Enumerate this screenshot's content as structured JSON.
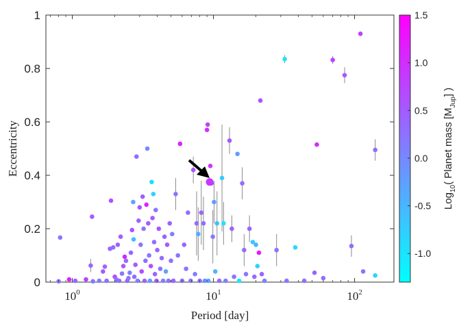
{
  "chart_data": {
    "type": "scatter",
    "xlabel": "Period [day]",
    "ylabel": "Eccentricity",
    "xscale": "log",
    "xlim": [
      0.65,
      190
    ],
    "ylim": [
      0,
      1
    ],
    "xticks": [
      {
        "value": 1,
        "base": "10",
        "exp": "0"
      },
      {
        "value": 10,
        "base": "10",
        "exp": "1"
      },
      {
        "value": 100,
        "base": "10",
        "exp": "2"
      }
    ],
    "yticks": [
      {
        "value": 0,
        "label": "0"
      },
      {
        "value": 0.2,
        "label": "0.2"
      },
      {
        "value": 0.4,
        "label": "0.4"
      },
      {
        "value": 0.6,
        "label": "0.6"
      },
      {
        "value": 0.8,
        "label": "0.8"
      },
      {
        "value": 1,
        "label": "1"
      }
    ],
    "grid": false,
    "colorbar": {
      "label_prefix": "Log",
      "label_sub": "10",
      "label_mid": "( Planet mass [M",
      "label_msub": "Jup",
      "label_suffix": "] )",
      "range": [
        -1.3,
        1.5
      ],
      "colors": [
        "#00ffff",
        "#ff00ff"
      ],
      "ticks": [
        {
          "value": 1.5,
          "label": "1.5"
        },
        {
          "value": 1.0,
          "label": "1.0"
        },
        {
          "value": 0.5,
          "label": "0.5"
        },
        {
          "value": 0.0,
          "label": "0.0"
        },
        {
          "value": -0.5,
          "label": "-0.5"
        },
        {
          "value": -1.0,
          "label": "-1.0"
        }
      ]
    },
    "highlight": {
      "x": 9.4,
      "y": 0.375,
      "m": 0.9
    },
    "points": [
      {
        "x": 0.82,
        "y": 0.167,
        "m": 0.2
      },
      {
        "x": 0.8,
        "y": 0.003,
        "m": 0.2
      },
      {
        "x": 0.95,
        "y": 0.01,
        "m": 1.1
      },
      {
        "x": 1.05,
        "y": 0.005,
        "m": 0.4
      },
      {
        "x": 1.25,
        "y": 0.01,
        "m": 0.8
      },
      {
        "x": 1.35,
        "y": 0.062,
        "m": 0.4,
        "err": 0.025
      },
      {
        "x": 1.38,
        "y": 0.245,
        "m": 0.5
      },
      {
        "x": 1.4,
        "y": 0.003,
        "m": 0.2
      },
      {
        "x": 1.55,
        "y": 0.005,
        "m": 0.1
      },
      {
        "x": 1.65,
        "y": 0.04,
        "m": 0.5
      },
      {
        "x": 1.7,
        "y": 0.058,
        "m": 0.4
      },
      {
        "x": 1.75,
        "y": 0.005,
        "m": 0.3
      },
      {
        "x": 1.85,
        "y": 0.125,
        "m": 0.4
      },
      {
        "x": 1.88,
        "y": 0.305,
        "m": 0.6
      },
      {
        "x": 1.95,
        "y": 0.13,
        "m": 0.3
      },
      {
        "x": 2.0,
        "y": 0.02,
        "m": 0.7
      },
      {
        "x": 2.05,
        "y": 0.01,
        "m": 0.2
      },
      {
        "x": 2.1,
        "y": 0.14,
        "m": 0.4
      },
      {
        "x": 2.15,
        "y": 0.005,
        "m": 0.3
      },
      {
        "x": 2.2,
        "y": 0.17,
        "m": 0.5
      },
      {
        "x": 2.25,
        "y": 0.032,
        "m": 0.2
      },
      {
        "x": 2.3,
        "y": 0.06,
        "m": 0.5
      },
      {
        "x": 2.35,
        "y": 0.095,
        "m": 1.1
      },
      {
        "x": 2.4,
        "y": 0.08,
        "m": 0.3
      },
      {
        "x": 2.45,
        "y": 0.005,
        "m": 0.4
      },
      {
        "x": 2.5,
        "y": 0.015,
        "m": 0.2
      },
      {
        "x": 2.55,
        "y": 0.035,
        "m": 0.1
      },
      {
        "x": 2.6,
        "y": 0.11,
        "m": 0.4
      },
      {
        "x": 2.65,
        "y": 0.195,
        "m": 0.6
      },
      {
        "x": 2.7,
        "y": 0.3,
        "m": -0.3
      },
      {
        "x": 2.72,
        "y": 0.16,
        "m": -0.6
      },
      {
        "x": 2.75,
        "y": 0.02,
        "m": 0.3
      },
      {
        "x": 2.8,
        "y": 0.065,
        "m": 0.5
      },
      {
        "x": 2.85,
        "y": 0.47,
        "m": 0.3
      },
      {
        "x": 2.9,
        "y": 0.005,
        "m": 0.1
      },
      {
        "x": 2.95,
        "y": 0.23,
        "m": 0.4
      },
      {
        "x": 3.0,
        "y": 0.28,
        "m": 0.6
      },
      {
        "x": 3.05,
        "y": 0.14,
        "m": 0.2
      },
      {
        "x": 3.1,
        "y": 0.04,
        "m": 0.7
      },
      {
        "x": 3.15,
        "y": 0.32,
        "m": 0.5
      },
      {
        "x": 3.2,
        "y": 0.2,
        "m": 0.2
      },
      {
        "x": 3.25,
        "y": 0.005,
        "m": 0.4
      },
      {
        "x": 3.3,
        "y": 0.08,
        "m": 0.3
      },
      {
        "x": 3.35,
        "y": 0.29,
        "m": 1.1
      },
      {
        "x": 3.4,
        "y": 0.5,
        "m": 0.0
      },
      {
        "x": 3.45,
        "y": 0.22,
        "m": 0.5
      },
      {
        "x": 3.5,
        "y": 0.1,
        "m": 0.2
      },
      {
        "x": 3.55,
        "y": 0.005,
        "m": -0.2
      },
      {
        "x": 3.6,
        "y": 0.06,
        "m": 0.6
      },
      {
        "x": 3.65,
        "y": 0.375,
        "m": -0.9
      },
      {
        "x": 3.7,
        "y": 0.24,
        "m": 0.5
      },
      {
        "x": 3.75,
        "y": 0.33,
        "m": -0.8
      },
      {
        "x": 3.8,
        "y": 0.15,
        "m": 0.3
      },
      {
        "x": 3.85,
        "y": 0.03,
        "m": 0.4
      },
      {
        "x": 3.9,
        "y": 0.27,
        "m": 0.2
      },
      {
        "x": 3.95,
        "y": 0.005,
        "m": 0.5
      },
      {
        "x": 4.0,
        "y": 0.12,
        "m": 0.4
      },
      {
        "x": 4.1,
        "y": 0.2,
        "m": 0.6
      },
      {
        "x": 4.2,
        "y": 0.05,
        "m": 0.2
      },
      {
        "x": 4.3,
        "y": 0.09,
        "m": 0.3
      },
      {
        "x": 4.4,
        "y": 0.005,
        "m": 0.1
      },
      {
        "x": 4.5,
        "y": 0.17,
        "m": 0.4
      },
      {
        "x": 4.6,
        "y": 0.04,
        "m": -0.3
      },
      {
        "x": 4.7,
        "y": 0.14,
        "m": 0.5
      },
      {
        "x": 4.8,
        "y": 0.005,
        "m": 0.2
      },
      {
        "x": 4.9,
        "y": 0.22,
        "m": 0.4
      },
      {
        "x": 5.0,
        "y": 0.08,
        "m": 0.3
      },
      {
        "x": 5.1,
        "y": 0.18,
        "m": 0.1
      },
      {
        "x": 5.2,
        "y": 0.005,
        "m": 0.4
      },
      {
        "x": 5.4,
        "y": 0.33,
        "m": 0.2,
        "err": 0.06
      },
      {
        "x": 5.6,
        "y": 0.1,
        "m": 0.2
      },
      {
        "x": 5.8,
        "y": 0.518,
        "m": 1.1
      },
      {
        "x": 6.0,
        "y": 0.005,
        "m": 0.3
      },
      {
        "x": 6.2,
        "y": 0.14,
        "m": 0.4
      },
      {
        "x": 6.4,
        "y": 0.05,
        "m": 0.2
      },
      {
        "x": 6.6,
        "y": 0.26,
        "m": 0.3
      },
      {
        "x": 6.9,
        "y": 0.005,
        "m": 0.2
      },
      {
        "x": 7.2,
        "y": 0.42,
        "m": 0.6,
        "err": 0.05
      },
      {
        "x": 7.4,
        "y": 0.03,
        "m": 0.1
      },
      {
        "x": 7.6,
        "y": 0.22,
        "m": 0.3,
        "err": 0.12
      },
      {
        "x": 7.8,
        "y": 0.18,
        "m": -0.4,
        "err": 0.1
      },
      {
        "x": 8.0,
        "y": 0.005,
        "m": 0.2
      },
      {
        "x": 8.2,
        "y": 0.26,
        "m": 0.4,
        "err": 0.12
      },
      {
        "x": 8.5,
        "y": 0.22,
        "m": 0.3,
        "err": 0.1
      },
      {
        "x": 8.7,
        "y": 0.005,
        "m": -0.1
      },
      {
        "x": 9.0,
        "y": 0.57,
        "m": 1.0
      },
      {
        "x": 9.1,
        "y": 0.59,
        "m": 0.8
      },
      {
        "x": 9.2,
        "y": 0.005,
        "m": -0.3
      },
      {
        "x": 9.5,
        "y": 0.435,
        "m": 0.9
      },
      {
        "x": 9.7,
        "y": 0.37,
        "m": 0.5
      },
      {
        "x": 9.9,
        "y": 0.17,
        "m": 0.2,
        "err": 0.1
      },
      {
        "x": 10.1,
        "y": 0.3,
        "m": -0.2,
        "err": 0.08
      },
      {
        "x": 10.3,
        "y": 0.04,
        "m": -0.5
      },
      {
        "x": 10.6,
        "y": 0.22,
        "m": -0.6,
        "err": 0.12
      },
      {
        "x": 11.0,
        "y": 0.005,
        "m": 0.3
      },
      {
        "x": 11.5,
        "y": 0.39,
        "m": -0.7,
        "err": 0.2
      },
      {
        "x": 11.8,
        "y": 0.22,
        "m": -1.0,
        "err": 0.08
      },
      {
        "x": 12.2,
        "y": 0.005,
        "m": 0.1
      },
      {
        "x": 13.0,
        "y": 0.53,
        "m": 0.5,
        "err": 0.05
      },
      {
        "x": 13.5,
        "y": 0.2,
        "m": 0.4,
        "err": 0.05
      },
      {
        "x": 14.0,
        "y": 0.02,
        "m": 0.2
      },
      {
        "x": 14.8,
        "y": 0.48,
        "m": -0.2
      },
      {
        "x": 15.2,
        "y": 0.005,
        "m": -1.0
      },
      {
        "x": 16.0,
        "y": 0.37,
        "m": 0.3,
        "err": 0.06
      },
      {
        "x": 16.5,
        "y": 0.12,
        "m": 0.3,
        "err": 0.06
      },
      {
        "x": 17.0,
        "y": 0.03,
        "m": 0.2
      },
      {
        "x": 18.0,
        "y": 0.2,
        "m": 0.4,
        "err": 0.05
      },
      {
        "x": 19.0,
        "y": 0.15,
        "m": -0.7
      },
      {
        "x": 19.5,
        "y": 0.02,
        "m": 0.3
      },
      {
        "x": 20.0,
        "y": 0.14,
        "m": -0.5
      },
      {
        "x": 20.5,
        "y": 0.06,
        "m": -0.8
      },
      {
        "x": 21.0,
        "y": 0.11,
        "m": 1.2
      },
      {
        "x": 21.5,
        "y": 0.68,
        "m": 0.6
      },
      {
        "x": 22.0,
        "y": 0.03,
        "m": 0.4
      },
      {
        "x": 23.0,
        "y": 0.005,
        "m": 0.1
      },
      {
        "x": 28.0,
        "y": 0.12,
        "m": 0.2,
        "err": 0.06
      },
      {
        "x": 32.0,
        "y": 0.835,
        "m": -1.0,
        "err": 0.015
      },
      {
        "x": 33.0,
        "y": 0.005,
        "m": 0.2
      },
      {
        "x": 38.0,
        "y": 0.13,
        "m": -0.9
      },
      {
        "x": 44.0,
        "y": 0.005,
        "m": 0.3
      },
      {
        "x": 52.0,
        "y": 0.035,
        "m": 0.4
      },
      {
        "x": 54.0,
        "y": 0.515,
        "m": 1.0
      },
      {
        "x": 60.0,
        "y": 0.015,
        "m": 0.3
      },
      {
        "x": 70.0,
        "y": 0.832,
        "m": 0.8,
        "err": 0.015
      },
      {
        "x": 85.0,
        "y": 0.775,
        "m": 0.5,
        "err": 0.03
      },
      {
        "x": 95.0,
        "y": 0.135,
        "m": 0.3,
        "err": 0.04
      },
      {
        "x": 110.0,
        "y": 0.93,
        "m": 0.8
      },
      {
        "x": 115.0,
        "y": 0.04,
        "m": 0.3
      },
      {
        "x": 140.0,
        "y": 0.495,
        "m": 0.3,
        "err": 0.04
      },
      {
        "x": 140.0,
        "y": 0.025,
        "m": -0.8
      }
    ]
  }
}
